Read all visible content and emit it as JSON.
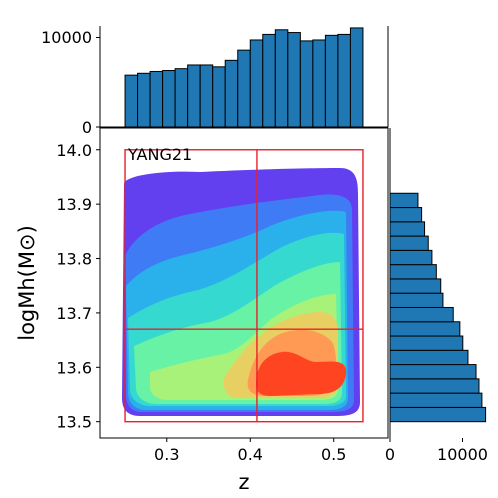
{
  "chart_data": [
    {
      "type": "heatmap",
      "panel": "main-joint-density",
      "annotation": "YANG21",
      "xlabel": "z",
      "ylabel": "logMh(M⊙)",
      "xlim": [
        0.22,
        0.565
      ],
      "ylim": [
        13.47,
        14.04
      ],
      "xticks": [
        0.3,
        0.4,
        0.5
      ],
      "xtick_labels": [
        "0.3",
        "0.4",
        "0.5"
      ],
      "yticks": [
        13.5,
        13.6,
        13.7,
        13.8,
        13.9,
        14.0
      ],
      "ytick_labels": [
        "13.5",
        "13.6",
        "13.7",
        "13.8",
        "13.9",
        "14.0"
      ],
      "grid": false,
      "legend": "none",
      "density_levels": 9,
      "density_colormap": [
        "#6240f0",
        "#3f7bf5",
        "#2ab0ea",
        "#35d9cf",
        "#67f2a6",
        "#a8f27a",
        "#e8cf62",
        "#fe9a54",
        "#ff4422"
      ],
      "selection_box": {
        "x": [
          0.25,
          0.535
        ],
        "y": [
          13.5,
          14.0
        ],
        "color": "#e8202a"
      },
      "selection_dividers": {
        "x": 0.408,
        "y": 13.67
      }
    },
    {
      "type": "bar",
      "panel": "top-marginal-histogram",
      "orientation": "vertical",
      "bar_color": "#1f77b4",
      "x_edges_start": 0.25,
      "bin_width": 0.015,
      "values": [
        5600,
        5800,
        6000,
        6100,
        6300,
        6700,
        6700,
        6500,
        7200,
        8300,
        9400,
        10000,
        10500,
        10200,
        9300,
        9400,
        9900,
        10000,
        10700
      ],
      "ylim": [
        0,
        10800
      ],
      "yticks": [
        0,
        10000
      ],
      "ytick_labels": [
        "0",
        "10000"
      ]
    },
    {
      "type": "bar",
      "panel": "right-marginal-histogram",
      "orientation": "horizontal",
      "bar_color": "#1f77b4",
      "y_edges_start": 13.5,
      "bin_width": 0.02625,
      "values": [
        13000,
        12500,
        12100,
        11700,
        10600,
        9900,
        9500,
        8600,
        7200,
        6900,
        6300,
        5700,
        5200,
        4700,
        4300,
        3800
      ],
      "xlim": [
        0,
        13600
      ],
      "xticks": [
        0,
        10000
      ],
      "xtick_labels": [
        "0",
        "10000"
      ]
    }
  ]
}
